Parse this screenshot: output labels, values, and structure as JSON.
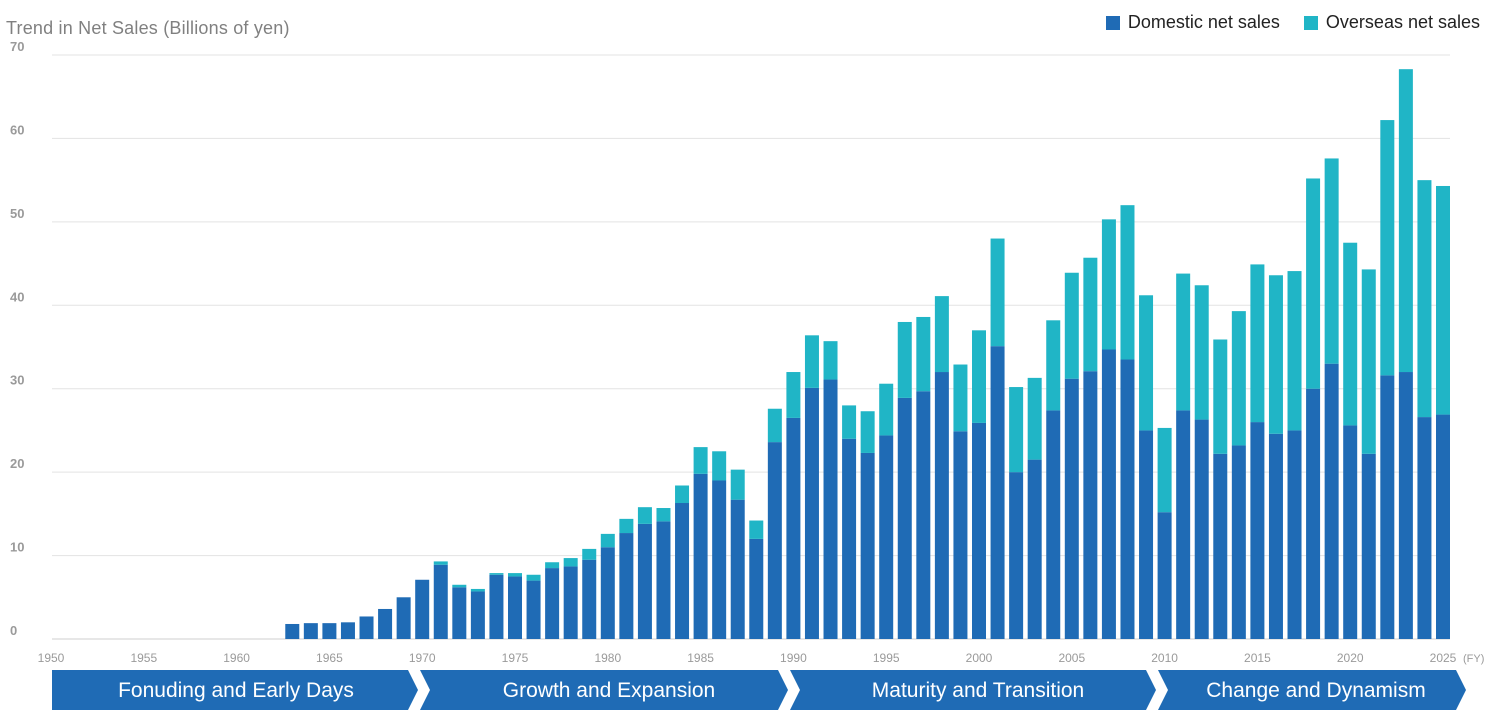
{
  "title": "Trend in Net Sales (Billions of yen)",
  "legend": {
    "domestic_label": "Domestic net sales",
    "overseas_label": "Overseas net sales"
  },
  "colors": {
    "domestic": "#1f6bb5",
    "overseas": "#20b5c6",
    "era_band": "#1f6bb5",
    "axis_text": "#9a9a9a",
    "grid": "#e3e3e3"
  },
  "x_unit": "(FY)",
  "eras": [
    {
      "label": "Fonuding and Early Days",
      "start": 1950,
      "end": 1969
    },
    {
      "label": "Growth and Expansion",
      "start": 1970,
      "end": 1989
    },
    {
      "label": "Maturity and Transition",
      "start": 1990,
      "end": 2009
    },
    {
      "label": "Change and Dynamism",
      "start": 2010,
      "end": 2025
    }
  ],
  "chart_data": {
    "type": "bar",
    "stacked": true,
    "title": "Trend in Net Sales (Billions of yen)",
    "xlim": [
      1950,
      2025
    ],
    "ylim": [
      0,
      70
    ],
    "yticks": [
      0,
      10,
      20,
      30,
      40,
      50,
      60,
      70
    ],
    "xticks": [
      1950,
      1955,
      1960,
      1965,
      1970,
      1975,
      1980,
      1985,
      1990,
      1995,
      2000,
      2005,
      2010,
      2015,
      2020,
      2025
    ],
    "grid": true,
    "legend_position": "top-right",
    "categories": [
      1963,
      1964,
      1965,
      1966,
      1967,
      1968,
      1969,
      1970,
      1971,
      1972,
      1973,
      1974,
      1975,
      1976,
      1977,
      1978,
      1979,
      1980,
      1981,
      1982,
      1983,
      1984,
      1985,
      1986,
      1987,
      1988,
      1989,
      1990,
      1991,
      1992,
      1993,
      1994,
      1995,
      1996,
      1997,
      1998,
      1999,
      2000,
      2001,
      2002,
      2003,
      2004,
      2005,
      2006,
      2007,
      2008,
      2009,
      2010,
      2011,
      2012,
      2013,
      2014,
      2015,
      2016,
      2017,
      2018,
      2019,
      2020,
      2021,
      2022,
      2023,
      2024,
      2025
    ],
    "series": [
      {
        "name": "Domestic net sales",
        "values": [
          1.8,
          1.9,
          1.9,
          2.0,
          2.7,
          3.6,
          5.0,
          7.1,
          8.9,
          6.2,
          5.7,
          7.7,
          7.5,
          7.0,
          8.5,
          8.7,
          9.5,
          11.0,
          12.7,
          13.8,
          14.1,
          16.3,
          19.8,
          19.0,
          16.7,
          12.0,
          23.6,
          26.5,
          30.1,
          31.1,
          24.0,
          22.3,
          24.4,
          28.9,
          29.7,
          32.0,
          24.9,
          25.9,
          35.1,
          20.0,
          21.5,
          27.4,
          31.2,
          32.1,
          34.7,
          33.5,
          25.0,
          15.2,
          27.4,
          26.3,
          22.2,
          23.2,
          26.0,
          24.6,
          25.0,
          30.0,
          33.0,
          25.6,
          22.2,
          31.6,
          32.0,
          26.6,
          26.9
        ]
      },
      {
        "name": "Overseas net sales",
        "values": [
          0,
          0,
          0,
          0,
          0,
          0,
          0,
          0,
          0.4,
          0.3,
          0.3,
          0.2,
          0.4,
          0.7,
          0.7,
          1.0,
          1.3,
          1.6,
          1.7,
          2.0,
          1.6,
          2.1,
          3.2,
          3.5,
          3.6,
          2.2,
          4.0,
          5.5,
          6.3,
          4.6,
          4.0,
          5.0,
          6.2,
          9.1,
          8.9,
          9.1,
          8.0,
          11.1,
          12.9,
          10.2,
          9.8,
          10.8,
          12.7,
          13.6,
          15.6,
          18.5,
          16.2,
          10.1,
          16.4,
          16.1,
          13.7,
          16.1,
          18.9,
          19.0,
          19.1,
          25.2,
          24.6,
          21.9,
          22.1,
          30.6,
          36.3,
          28.4,
          27.4
        ]
      }
    ]
  }
}
